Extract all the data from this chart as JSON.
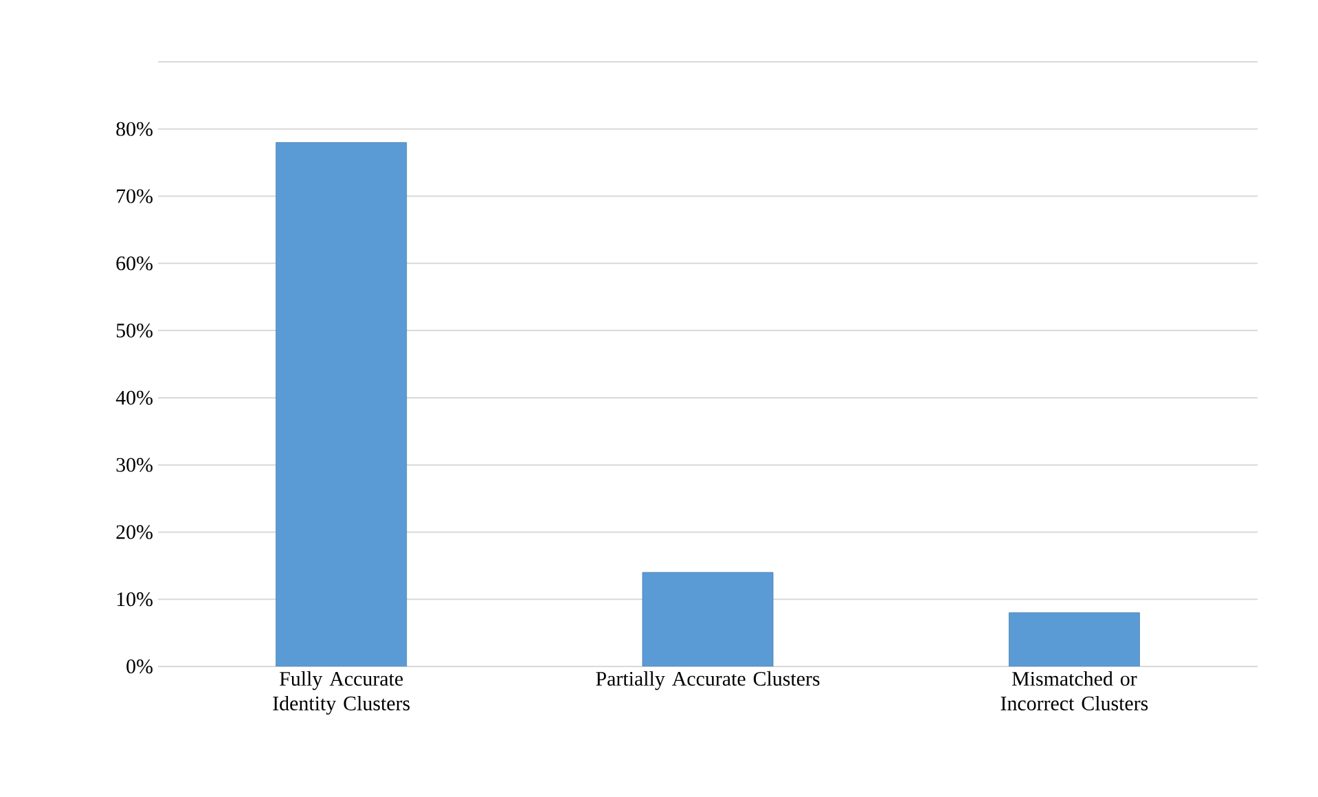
{
  "chart_data": {
    "type": "bar",
    "categories": [
      "Fully Accurate Identity Clusters",
      "Partially Accurate Clusters",
      "Mismatched or Incorrect Clusters"
    ],
    "values": [
      78,
      14,
      8
    ],
    "color": "#5b9bd5",
    "ylim": [
      0,
      90
    ],
    "yticks": [
      {
        "value": 0,
        "label": "0%"
      },
      {
        "value": 10,
        "label": "10%"
      },
      {
        "value": 20,
        "label": "20%"
      },
      {
        "value": 30,
        "label": "30%"
      },
      {
        "value": 40,
        "label": "40%"
      },
      {
        "value": 50,
        "label": "50%"
      },
      {
        "value": 60,
        "label": "60%"
      },
      {
        "value": 70,
        "label": "70%"
      },
      {
        "value": 80,
        "label": "80%"
      },
      {
        "value": 90,
        "label": null
      }
    ],
    "grid": "y"
  }
}
